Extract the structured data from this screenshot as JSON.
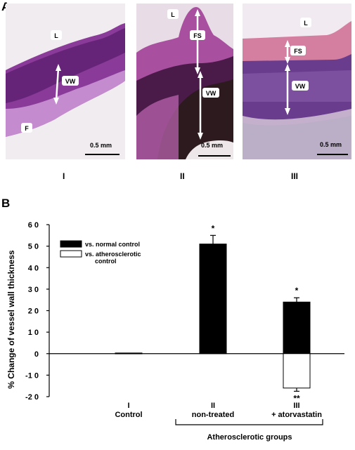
{
  "panel_a": {
    "letter": "A",
    "images": [
      {
        "roman": "I",
        "labels": {
          "lumen": "L",
          "wall": "VW",
          "f": "F"
        },
        "scale": "0.5 mm"
      },
      {
        "roman": "II",
        "labels": {
          "lumen": "L",
          "fs": "FS",
          "wall": "VW"
        },
        "scale": "0.5 mm"
      },
      {
        "roman": "III",
        "labels": {
          "lumen": "L",
          "fs": "FS",
          "wall": "VW"
        },
        "scale": "0.5 mm"
      }
    ],
    "colors": {
      "tissue_dark": "#5a1f6e",
      "tissue_mid": "#8e3c9c",
      "tissue_light": "#c78ad0",
      "fibrous_cap": "#d98aa8",
      "background": "#f4ecf2"
    }
  },
  "chart_data": {
    "panel_letter": "B",
    "type": "bar",
    "ylabel": "% Change of vessel wall thickness",
    "ylim": [
      -20,
      60
    ],
    "yticks": [
      "6 0",
      "5 0",
      "4 0",
      "3 0",
      "2 0",
      "1 0",
      "0",
      "-1 0",
      "-2 0"
    ],
    "ytick_values": [
      60,
      50,
      40,
      30,
      20,
      10,
      0,
      -10,
      -20
    ],
    "groups": [
      {
        "roman": "I",
        "label": "Control"
      },
      {
        "roman": "II",
        "label": "non-treated"
      },
      {
        "roman": "III",
        "label": "+ atorvastatin"
      }
    ],
    "series": [
      {
        "name": "vs. normal control",
        "color": "#000000",
        "values": [
          0.3,
          51,
          24
        ],
        "errors": [
          0,
          4,
          2
        ],
        "markers": [
          "",
          "*",
          "*"
        ]
      },
      {
        "name": "vs. atherosclerotic control",
        "color": "#ffffff",
        "values": [
          null,
          null,
          -16
        ],
        "errors": [
          0,
          0,
          1.5
        ],
        "markers": [
          "",
          "",
          "**"
        ]
      }
    ],
    "legend_position": "top-left",
    "bracket_label": "Atherosclerotic groups"
  }
}
